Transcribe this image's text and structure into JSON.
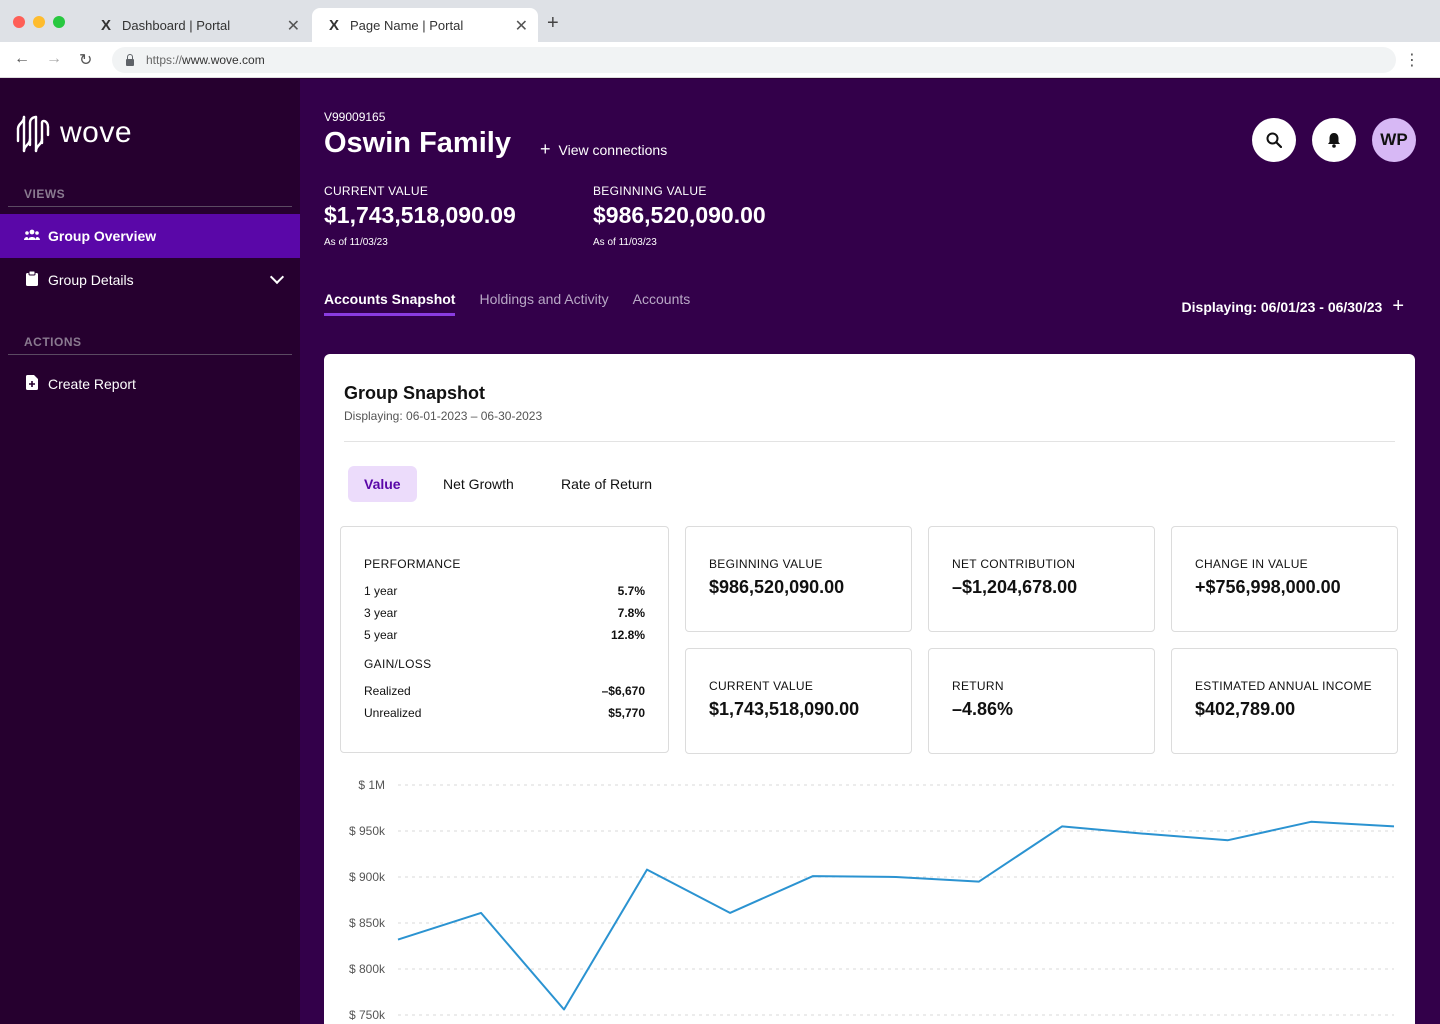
{
  "browser": {
    "tabs": [
      {
        "title": "Dashboard | Portal",
        "active": false
      },
      {
        "title": "Page Name | Portal",
        "active": true
      }
    ],
    "url_protocol": "https://",
    "url_host": "www.wove.com"
  },
  "sidebar": {
    "logo_text": "wove",
    "views_label": "VIEWS",
    "actions_label": "ACTIONS",
    "items": [
      {
        "label": "Group Overview",
        "icon": "users-icon",
        "active": true
      },
      {
        "label": "Group Details",
        "icon": "clipboard-icon",
        "active": false
      },
      {
        "label": "Create Report",
        "icon": "file-plus-icon",
        "active": false
      }
    ]
  },
  "header": {
    "account_id": "V99009165",
    "family_name": "Oswin Family",
    "view_connections": "View connections",
    "avatar_initials": "WP",
    "current_value_label": "CURRENT VALUE",
    "current_value": "$1,743,518,090.09",
    "current_asof": "As of 11/03/23",
    "beginning_value_label": "BEGINNING VALUE",
    "beginning_value": "$986,520,090.00",
    "beginning_asof": "As of 11/03/23",
    "tabs": [
      "Accounts Snapshot",
      "Holdings and Activity",
      "Accounts"
    ],
    "displaying": "Displaying: 06/01/23 - 06/30/23"
  },
  "snapshot": {
    "title": "Group Snapshot",
    "subtitle": "Displaying: 06-01-2023 – 06-30-2023",
    "segments": [
      "Value",
      "Net Growth",
      "Rate of Return"
    ],
    "performance_label": "PERFORMANCE",
    "performance": [
      {
        "label": "1 year",
        "value": "5.7%"
      },
      {
        "label": "3 year",
        "value": "7.8%"
      },
      {
        "label": "5 year",
        "value": "12.8%"
      }
    ],
    "gainloss_label": "GAIN/LOSS",
    "gainloss": [
      {
        "label": "Realized",
        "value": "–$6,670"
      },
      {
        "label": "Unrealized",
        "value": "$5,770"
      }
    ],
    "stats": [
      {
        "label": "BEGINNING VALUE",
        "value": "$986,520,090.00"
      },
      {
        "label": "NET CONTRIBUTION",
        "value": "–$1,204,678.00"
      },
      {
        "label": "CHANGE IN VALUE",
        "value": "+$756,998,000.00"
      },
      {
        "label": "CURRENT VALUE",
        "value": "$1,743,518,090.00"
      },
      {
        "label": "RETURN",
        "value": "–4.86%"
      },
      {
        "label": "ESTIMATED ANNUAL INCOME",
        "value": "$402,789.00"
      }
    ]
  },
  "chart_data": {
    "type": "line",
    "y_tick_labels": [
      "$ 1M",
      "$ 950k",
      "$ 900k",
      "$ 850k",
      "$ 800k",
      "$ 750k"
    ],
    "y_ticks": [
      1000000,
      950000,
      900000,
      850000,
      800000,
      750000
    ],
    "ylim": [
      750000,
      1000000
    ],
    "line_color": "#2b93d1",
    "grid": true,
    "series": [
      {
        "values": [
          832000,
          861000,
          756000,
          908000,
          861000,
          901000,
          900000,
          895000,
          955000,
          947000,
          940000,
          960000,
          955000
        ]
      }
    ]
  }
}
